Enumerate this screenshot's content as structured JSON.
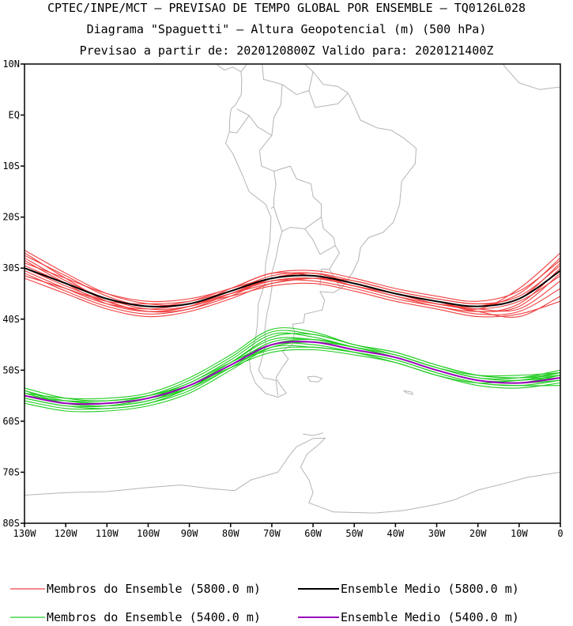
{
  "title": {
    "line1": "CPTEC/INPE/MCT — PREVISAO DE TEMPO GLOBAL POR ENSEMBLE — TQ0126L028",
    "line2": "Diagrama \"Spaguetti\" — Altura Geopotencial (m) (500 hPa)",
    "line3": "Previsao a partir de: 2020120800Z  Valido para: 2020121400Z"
  },
  "colors": {
    "member_5800": "#f04040",
    "mean_5800": "#000000",
    "member_5400": "#22cc22",
    "mean_5400": "#9900bb",
    "coast": "#b4b4b4"
  },
  "chart_data": {
    "type": "line",
    "xlim": [
      -130,
      0
    ],
    "ylim": [
      -80,
      10
    ],
    "x_ticks": [
      -130,
      -120,
      -110,
      -100,
      -90,
      -80,
      -70,
      -60,
      -50,
      -40,
      -30,
      -20,
      -10,
      0
    ],
    "x_tick_labels": [
      "130W",
      "120W",
      "110W",
      "100W",
      "90W",
      "80W",
      "70W",
      "60W",
      "50W",
      "40W",
      "30W",
      "20W",
      "10W",
      "0"
    ],
    "y_ticks": [
      10,
      0,
      -10,
      -20,
      -30,
      -40,
      -50,
      -60,
      -70,
      -80
    ],
    "y_tick_labels": [
      "10N",
      "EQ",
      "10S",
      "20S",
      "30S",
      "40S",
      "50S",
      "60S",
      "70S",
      "80S"
    ],
    "x": [
      -130,
      -120,
      -110,
      -100,
      -90,
      -80,
      -70,
      -60,
      -50,
      -40,
      -30,
      -20,
      -10,
      0
    ],
    "series": [
      {
        "name": "Ensemble Medio (5800.0 m)",
        "role": "mean",
        "color": "#000000",
        "values": [
          -30.0,
          -33.0,
          -36.0,
          -37.5,
          -37.0,
          -34.5,
          -32.0,
          -31.5,
          -33.0,
          -35.0,
          -36.5,
          -37.5,
          -36.0,
          -30.5
        ]
      },
      {
        "name": "Ensemble Medio (5400.0 m)",
        "role": "mean",
        "color": "#9900bb",
        "values": [
          -55.0,
          -56.5,
          -56.5,
          -55.5,
          -53.0,
          -49.0,
          -45.0,
          -44.5,
          -46.0,
          -47.5,
          -50.0,
          -52.0,
          -52.5,
          -51.5
        ]
      }
    ],
    "members_5800": [
      [
        -26.5,
        -31.0,
        -35.0,
        -37.0,
        -37.0,
        -34.5,
        -31.5,
        -31.0,
        -33.0,
        -35.0,
        -36.5,
        -38.0,
        -34.0,
        -27.0
      ],
      [
        -27.5,
        -31.5,
        -35.5,
        -37.5,
        -36.5,
        -34.0,
        -32.0,
        -31.5,
        -33.5,
        -35.5,
        -37.0,
        -37.5,
        -35.0,
        -28.0
      ],
      [
        -28.0,
        -32.5,
        -36.0,
        -38.0,
        -37.5,
        -35.0,
        -32.0,
        -31.0,
        -32.5,
        -34.5,
        -36.0,
        -37.0,
        -36.0,
        -29.0
      ],
      [
        -29.0,
        -32.0,
        -35.0,
        -36.5,
        -36.0,
        -34.0,
        -31.0,
        -31.5,
        -33.0,
        -35.0,
        -36.5,
        -38.5,
        -37.0,
        -30.0
      ],
      [
        -30.0,
        -33.5,
        -36.5,
        -38.5,
        -38.0,
        -35.0,
        -32.5,
        -32.0,
        -33.5,
        -35.5,
        -37.5,
        -38.5,
        -37.5,
        -31.0
      ],
      [
        -31.0,
        -34.5,
        -37.5,
        -39.0,
        -38.0,
        -35.5,
        -32.0,
        -31.0,
        -33.0,
        -35.0,
        -37.0,
        -38.0,
        -38.0,
        -32.5
      ],
      [
        -31.5,
        -34.0,
        -36.5,
        -37.0,
        -36.5,
        -34.5,
        -32.5,
        -32.5,
        -34.0,
        -36.0,
        -37.5,
        -39.0,
        -38.5,
        -34.0
      ],
      [
        -32.0,
        -35.0,
        -38.0,
        -39.5,
        -38.5,
        -36.0,
        -33.0,
        -32.0,
        -33.5,
        -35.0,
        -36.5,
        -38.5,
        -39.5,
        -35.5
      ],
      [
        -29.5,
        -33.0,
        -36.0,
        -37.5,
        -37.0,
        -35.0,
        -33.0,
        -32.0,
        -32.5,
        -34.5,
        -36.0,
        -37.0,
        -35.5,
        -29.5
      ],
      [
        -27.0,
        -32.0,
        -36.5,
        -38.5,
        -37.5,
        -34.0,
        -31.0,
        -30.5,
        -32.0,
        -34.0,
        -35.5,
        -36.5,
        -34.5,
        -28.5
      ],
      [
        -30.5,
        -34.0,
        -37.0,
        -38.0,
        -37.0,
        -35.5,
        -33.5,
        -33.0,
        -34.5,
        -36.5,
        -38.0,
        -39.5,
        -39.0,
        -36.5
      ],
      [
        -28.5,
        -33.0,
        -37.0,
        -38.5,
        -37.5,
        -35.0,
        -32.5,
        -32.0,
        -33.0,
        -35.0,
        -37.0,
        -38.0,
        -36.5,
        -31.5
      ]
    ],
    "members_5400": [
      [
        -53.5,
        -55.5,
        -56.0,
        -55.0,
        -52.5,
        -48.0,
        -43.0,
        -43.5,
        -45.5,
        -47.0,
        -49.5,
        -51.5,
        -51.5,
        -50.0
      ],
      [
        -54.0,
        -56.0,
        -56.5,
        -55.5,
        -53.0,
        -48.5,
        -44.0,
        -44.0,
        -45.5,
        -47.5,
        -50.0,
        -52.0,
        -52.0,
        -50.5
      ],
      [
        -55.0,
        -56.5,
        -56.5,
        -55.0,
        -52.0,
        -47.5,
        -42.5,
        -43.0,
        -45.0,
        -47.0,
        -49.5,
        -51.0,
        -51.0,
        -50.5
      ],
      [
        -55.5,
        -57.0,
        -57.5,
        -56.5,
        -54.0,
        -49.5,
        -45.5,
        -45.5,
        -46.5,
        -48.0,
        -50.5,
        -52.5,
        -53.0,
        -52.0
      ],
      [
        -56.0,
        -57.5,
        -57.5,
        -56.5,
        -53.5,
        -49.0,
        -46.0,
        -45.5,
        -46.5,
        -48.0,
        -50.5,
        -52.5,
        -53.0,
        -53.0
      ],
      [
        -54.5,
        -55.5,
        -55.5,
        -54.5,
        -51.5,
        -47.0,
        -42.0,
        -42.5,
        -45.0,
        -46.5,
        -49.0,
        -51.0,
        -51.5,
        -51.0
      ],
      [
        -55.0,
        -56.0,
        -56.0,
        -55.0,
        -53.0,
        -49.5,
        -46.5,
        -46.0,
        -47.0,
        -48.5,
        -51.0,
        -52.5,
        -52.0,
        -51.5
      ],
      [
        -56.5,
        -58.0,
        -58.0,
        -57.0,
        -54.5,
        -50.0,
        -45.5,
        -44.5,
        -45.5,
        -47.5,
        -50.0,
        -52.0,
        -52.5,
        -52.0
      ],
      [
        -54.0,
        -56.5,
        -57.0,
        -56.0,
        -53.5,
        -49.0,
        -44.5,
        -44.0,
        -45.5,
        -47.0,
        -49.5,
        -51.5,
        -52.0,
        -51.0
      ],
      [
        -55.5,
        -57.0,
        -57.0,
        -55.5,
        -52.5,
        -48.5,
        -45.0,
        -45.0,
        -46.5,
        -48.5,
        -51.0,
        -53.0,
        -53.5,
        -52.5
      ],
      [
        -55.0,
        -56.0,
        -56.5,
        -55.5,
        -53.5,
        -49.5,
        -45.0,
        -44.0,
        -45.5,
        -47.5,
        -50.0,
        -52.0,
        -52.5,
        -51.0
      ],
      [
        -54.5,
        -56.5,
        -57.0,
        -56.0,
        -53.0,
        -48.5,
        -43.5,
        -43.0,
        -45.0,
        -46.5,
        -49.0,
        -51.0,
        -51.5,
        -50.5
      ]
    ],
    "legend": [
      {
        "label": "Membros do Ensemble (5800.0 m)",
        "color": "#f04040"
      },
      {
        "label": "Ensemble Medio (5800.0 m)",
        "color": "#000000"
      },
      {
        "label": "Membros do Ensemble (5400.0 m)",
        "color": "#22cc22"
      },
      {
        "label": "Ensemble Medio (5400.0 m)",
        "color": "#9900bb"
      }
    ],
    "legend_position": "bottom",
    "grid": false
  }
}
